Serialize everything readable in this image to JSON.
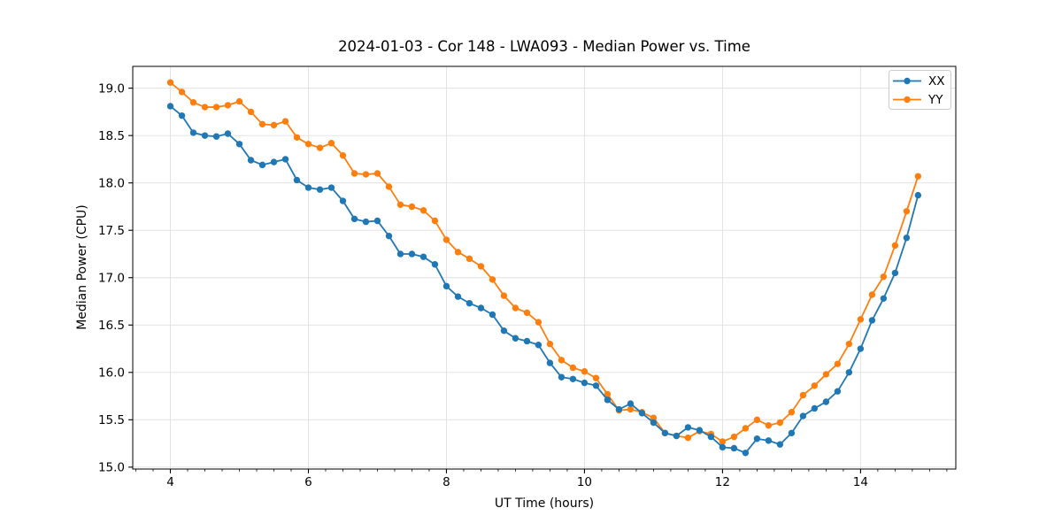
{
  "chart_data": {
    "type": "line",
    "title": "2024-01-03 - Cor 148 - LWA093 - Median Power vs. Time",
    "xlabel": "UT Time (hours)",
    "ylabel": "Median Power (CPU)",
    "xlim": [
      3.455,
      15.38
    ],
    "ylim": [
      14.98,
      19.23
    ],
    "xticks": [
      4,
      6,
      8,
      10,
      12,
      14
    ],
    "yticks": [
      15.0,
      15.5,
      16.0,
      16.5,
      17.0,
      17.5,
      18.0,
      18.5,
      19.0
    ],
    "x_minor_step": 0.25,
    "grid": true,
    "background_color": "#ffffff",
    "grid_color": "#e0e0e0",
    "legend": {
      "position": "upper right",
      "entries": [
        "XX",
        "YY"
      ]
    },
    "x": [
      4.0,
      4.167,
      4.333,
      4.5,
      4.667,
      4.833,
      5.0,
      5.167,
      5.333,
      5.5,
      5.667,
      5.833,
      6.0,
      6.167,
      6.333,
      6.5,
      6.667,
      6.833,
      7.0,
      7.167,
      7.333,
      7.5,
      7.667,
      7.833,
      8.0,
      8.167,
      8.333,
      8.5,
      8.667,
      8.833,
      9.0,
      9.167,
      9.333,
      9.5,
      9.667,
      9.833,
      10.0,
      10.167,
      10.333,
      10.5,
      10.667,
      10.833,
      11.0,
      11.167,
      11.333,
      11.5,
      11.667,
      11.833,
      12.0,
      12.167,
      12.333,
      12.5,
      12.667,
      12.833,
      13.0,
      13.167,
      13.333,
      13.5,
      13.667,
      13.833,
      14.0,
      14.167,
      14.333,
      14.5,
      14.667,
      14.833
    ],
    "series": [
      {
        "name": "XX",
        "color": "#1f77b4",
        "values": [
          18.81,
          18.71,
          18.53,
          18.5,
          18.49,
          18.52,
          18.41,
          18.24,
          18.19,
          18.22,
          18.25,
          18.03,
          17.95,
          17.93,
          17.95,
          17.81,
          17.62,
          17.59,
          17.6,
          17.44,
          17.25,
          17.25,
          17.22,
          17.14,
          16.91,
          16.8,
          16.73,
          16.68,
          16.61,
          16.44,
          16.36,
          16.33,
          16.29,
          16.1,
          15.95,
          15.93,
          15.89,
          15.86,
          15.71,
          15.61,
          15.67,
          15.57,
          15.47,
          15.36,
          15.33,
          15.42,
          15.39,
          15.32,
          15.21,
          15.2,
          15.15,
          15.3,
          15.28,
          15.24,
          15.36,
          15.54,
          15.62,
          15.69,
          15.8,
          16.0,
          16.25,
          16.55,
          16.78,
          17.05,
          17.42,
          17.87
        ]
      },
      {
        "name": "YY",
        "color": "#ff7f0e",
        "values": [
          19.06,
          18.96,
          18.85,
          18.8,
          18.8,
          18.82,
          18.86,
          18.75,
          18.62,
          18.61,
          18.65,
          18.48,
          18.41,
          18.37,
          18.42,
          18.29,
          18.1,
          18.09,
          18.1,
          17.96,
          17.77,
          17.75,
          17.71,
          17.6,
          17.4,
          17.27,
          17.2,
          17.12,
          16.98,
          16.81,
          16.68,
          16.63,
          16.53,
          16.3,
          16.13,
          16.05,
          16.01,
          15.94,
          15.77,
          15.6,
          15.61,
          15.58,
          15.52,
          15.36,
          15.33,
          15.31,
          15.38,
          15.35,
          15.27,
          15.32,
          15.41,
          15.5,
          15.44,
          15.47,
          15.58,
          15.76,
          15.86,
          15.98,
          16.09,
          16.3,
          16.56,
          16.82,
          17.01,
          17.34,
          17.7,
          18.07
        ]
      }
    ]
  }
}
